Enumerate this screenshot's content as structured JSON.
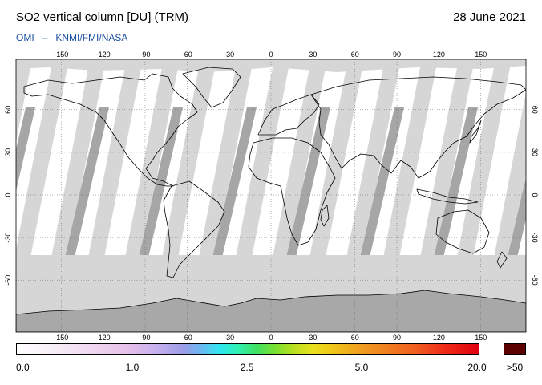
{
  "header": {
    "title": "SO2 vertical column [DU] (TRM)",
    "date": "28 June 2021",
    "credit_instrument": "OMI",
    "credit_sep": "–",
    "credit_agencies": "KNMI/FMI/NASA"
  },
  "map": {
    "projection": "equirectangular",
    "lon_ticks_top": [
      "-150",
      "-120",
      "-90",
      "-60",
      "-30",
      "0",
      "30",
      "60",
      "90",
      "120",
      "150"
    ],
    "lon_ticks_bottom": [
      "-150",
      "-120",
      "-90",
      "-60",
      "-30",
      "0",
      "30",
      "60",
      "90",
      "120",
      "150"
    ],
    "lat_ticks_left": [
      "60",
      "30",
      "0",
      "-30",
      "-60"
    ],
    "lat_ticks_right": [
      "60",
      "30",
      "0",
      "-30",
      "-60"
    ],
    "grid": "dotted",
    "colors": {
      "land_outline": "#000000",
      "no_data_light": "#d6d6d6",
      "no_data_dark": "#a6a6a6",
      "background": "#ffffff"
    }
  },
  "colorbar": {
    "labels": [
      "0.0",
      "1.0",
      "2.5",
      "5.0",
      "20.0"
    ],
    "overflow_label": ">50",
    "overflow_color": "#5a0000"
  }
}
